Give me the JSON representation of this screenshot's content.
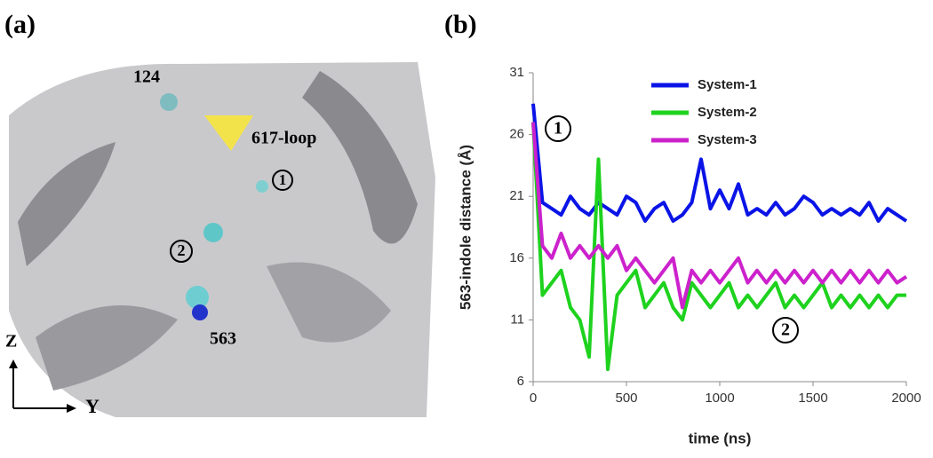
{
  "panel_a": {
    "label": "(a)",
    "residue_124": "124",
    "loop": "617-loop",
    "site_1": "1",
    "site_2": "2",
    "residue_563": "563",
    "axis_z": "Z",
    "axis_y": "Y"
  },
  "chart_data": {
    "type": "line",
    "panel_label": "(b)",
    "xlabel": "time (ns)",
    "ylabel": "563-indole distance (Å)",
    "xlim": [
      0,
      2000
    ],
    "ylim": [
      6,
      31
    ],
    "xticks": [
      0,
      500,
      1000,
      1500,
      2000
    ],
    "yticks": [
      6,
      11,
      16,
      21,
      26,
      31
    ],
    "annotations": [
      "1",
      "2"
    ],
    "x": [
      0,
      50,
      100,
      150,
      200,
      250,
      300,
      350,
      400,
      450,
      500,
      550,
      600,
      650,
      700,
      750,
      800,
      850,
      900,
      950,
      1000,
      1050,
      1100,
      1150,
      1200,
      1250,
      1300,
      1350,
      1400,
      1450,
      1500,
      1550,
      1600,
      1650,
      1700,
      1750,
      1800,
      1850,
      1900,
      1950,
      2000
    ],
    "series": [
      {
        "name": "System-1",
        "color": "#0a14e6",
        "values": [
          28.5,
          20.5,
          20,
          19.5,
          21,
          20,
          19.5,
          20.5,
          20,
          19.5,
          21,
          20.5,
          19,
          20,
          20.5,
          19,
          19.5,
          20.5,
          24,
          20,
          21.5,
          20,
          22,
          19.5,
          20,
          19.5,
          20.5,
          19.5,
          20,
          21,
          20.5,
          19.5,
          20,
          19.5,
          20,
          19.5,
          20.5,
          19,
          20,
          19.5,
          19
        ]
      },
      {
        "name": "System-2",
        "color": "#1ed21e",
        "values": [
          27,
          13,
          14,
          15,
          12,
          11,
          8,
          24,
          7,
          13,
          14,
          15,
          12,
          13,
          14,
          12,
          11,
          14,
          13,
          12,
          13,
          14,
          12,
          13,
          12,
          13,
          14,
          12,
          13,
          12,
          13,
          14,
          12,
          13,
          12,
          13,
          12,
          13,
          12,
          13,
          13
        ]
      },
      {
        "name": "System-3",
        "color": "#cc22cc",
        "values": [
          27,
          17,
          16,
          18,
          16,
          17,
          16,
          17,
          16,
          17,
          15,
          16,
          15,
          14,
          15,
          16,
          12,
          15,
          14,
          15,
          14,
          15,
          16,
          14,
          15,
          14,
          15,
          14,
          15,
          14,
          15,
          14,
          15,
          14,
          15,
          14,
          15,
          14,
          15,
          14,
          14.5
        ]
      }
    ]
  }
}
